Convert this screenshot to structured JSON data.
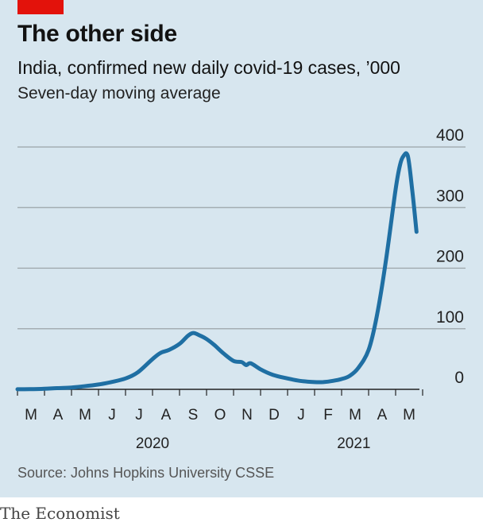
{
  "chart_data": {
    "type": "line",
    "title": "The other side",
    "subtitle": "India, confirmed new daily covid-19 cases, ’000",
    "note": "Seven-day moving average",
    "source": "Source: Johns Hopkins University CSSE",
    "brand": "The Economist",
    "ylim": [
      0,
      400
    ],
    "yticks": [
      0,
      100,
      200,
      300,
      400
    ],
    "ytick_labels": [
      "0",
      "100",
      "200",
      "300",
      "400"
    ],
    "month_labels": [
      "M",
      "A",
      "M",
      "J",
      "J",
      "A",
      "S",
      "O",
      "N",
      "D",
      "J",
      "F",
      "M",
      "A",
      "M"
    ],
    "year_labels": [
      {
        "label": "2020",
        "at": "2020-08-01"
      },
      {
        "label": "2021",
        "at": "2021-03-15"
      }
    ],
    "line_color": "#1f6fa3",
    "accent_color": "#e3120b",
    "series": [
      {
        "x": [
          "2020-03-01",
          "2020-03-15",
          "2020-04-01",
          "2020-04-15",
          "2020-05-01",
          "2020-05-15",
          "2020-06-01",
          "2020-06-15",
          "2020-07-01",
          "2020-07-15",
          "2020-08-01",
          "2020-08-10",
          "2020-08-20",
          "2020-09-01",
          "2020-09-10",
          "2020-09-16",
          "2020-09-22",
          "2020-10-01",
          "2020-10-10",
          "2020-10-20",
          "2020-11-01",
          "2020-11-10",
          "2020-11-15",
          "2020-11-20",
          "2020-12-01",
          "2020-12-15",
          "2021-01-01",
          "2021-01-15",
          "2021-02-01",
          "2021-02-10",
          "2021-02-20",
          "2021-03-01",
          "2021-03-10",
          "2021-03-20",
          "2021-04-01",
          "2021-04-10",
          "2021-04-20",
          "2021-05-01",
          "2021-05-06",
          "2021-05-10",
          "2021-05-15",
          "2021-05-20",
          "2021-05-25"
        ],
        "y": [
          0.1,
          0.3,
          1,
          2,
          3,
          5,
          8,
          12,
          18,
          28,
          50,
          60,
          65,
          75,
          88,
          93,
          90,
          83,
          73,
          60,
          47,
          45,
          40,
          43,
          33,
          24,
          18,
          14,
          12,
          12,
          14,
          17,
          22,
          35,
          65,
          120,
          210,
          330,
          370,
          385,
          385,
          330,
          260
        ]
      }
    ]
  }
}
